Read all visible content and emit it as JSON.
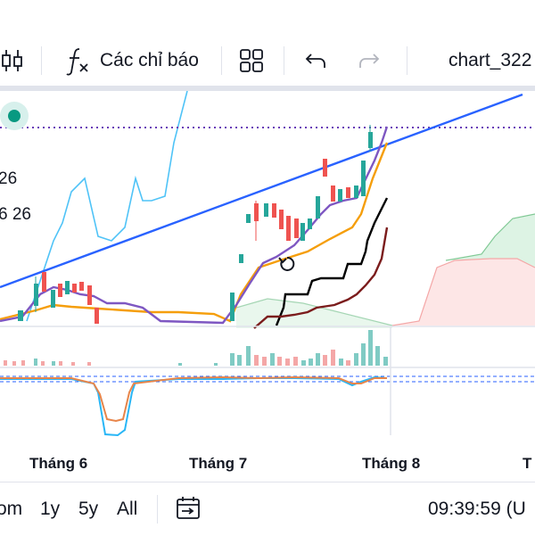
{
  "toolbar": {
    "indicators_label": "Các chỉ báo",
    "chart_name": "chart_322"
  },
  "icons": {
    "candles": "candlestick-icon",
    "indicators": "function-fx-icon",
    "layout": "grid-layout-icon",
    "undo": "undo-icon",
    "redo": "redo-icon",
    "reset": "reset-rotate-icon",
    "calendar": "calendar-range-icon"
  },
  "chart": {
    "price_labels": [
      "26",
      "6 26"
    ],
    "x_labels": [
      "Tháng 6",
      "Tháng 7",
      "Tháng 8",
      "T"
    ]
  },
  "bottom_bar": {
    "ranges": [
      "om",
      "1y",
      "5y",
      "All"
    ],
    "time": "09:39:59 (U"
  },
  "colors": {
    "up": "#26a69a",
    "down": "#ef5350",
    "trendline": "#2962ff",
    "orange": "#f59e0b",
    "purple": "#7e57c2",
    "cyan": "#4fc3f7",
    "dotted": "#673ab7"
  }
}
